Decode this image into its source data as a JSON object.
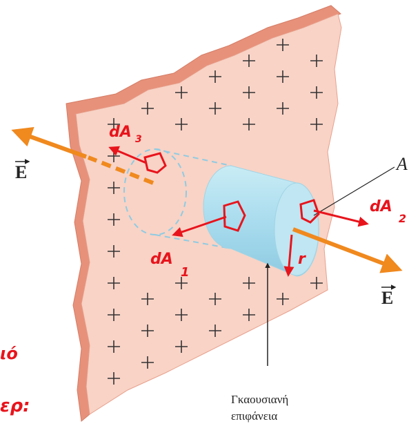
{
  "labels": {
    "field_left": "E",
    "field_right": "E",
    "surface_point": "A",
    "gaussian_surface": [
      "Γκαουσιανή",
      "επιφάνεια"
    ]
  },
  "annotations": {
    "dA3": "dA",
    "dA3_index": "3",
    "dA1": "dA",
    "dA1_index": "1",
    "dA2": "dA",
    "dA2_index": "2",
    "radius": "r",
    "margin_top": "ιό",
    "margin_bottom": "ερ:"
  }
}
